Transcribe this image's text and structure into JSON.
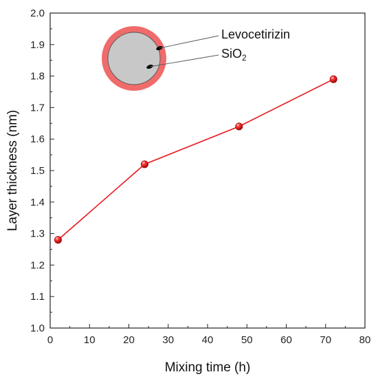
{
  "chart_data": {
    "type": "line",
    "title": "",
    "xlabel": "Mixing time (h)",
    "ylabel": "Layer thickness (nm)",
    "xlim": [
      0,
      80
    ],
    "ylim": [
      1.0,
      2.0
    ],
    "x_ticks": [
      "0",
      "10",
      "20",
      "30",
      "40",
      "50",
      "60",
      "70",
      "80"
    ],
    "y_ticks": [
      "1.0",
      "1.1",
      "1.2",
      "1.3",
      "1.4",
      "1.5",
      "1.6",
      "1.7",
      "1.8",
      "1.9",
      "2.0"
    ],
    "grid": false,
    "series": [
      {
        "x": [
          2,
          24,
          48,
          72
        ],
        "y": [
          1.28,
          1.52,
          1.64,
          1.79
        ],
        "color": "#e8151b",
        "marker": "sphere"
      }
    ],
    "inset": {
      "shell_label": "Levocetirizin",
      "core_label_main": "SiO",
      "core_label_sub": "2",
      "shell_color": "#f06b6b",
      "core_color": "#c8c8c8"
    }
  }
}
